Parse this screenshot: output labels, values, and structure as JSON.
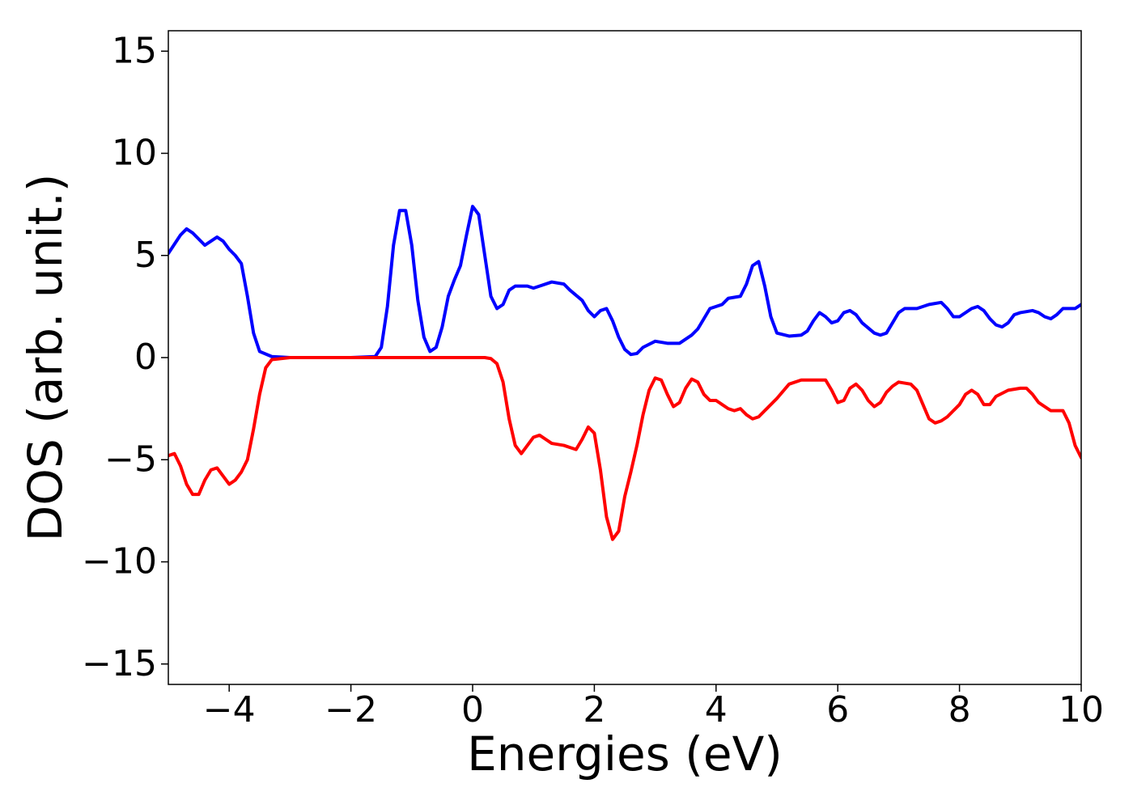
{
  "chart_data": {
    "type": "line",
    "xlabel": "Energies (eV)",
    "ylabel": "DOS (arb. unit.)",
    "xlim": [
      -5,
      10
    ],
    "ylim": [
      -16,
      16
    ],
    "xticks": [
      {
        "value": -4,
        "label": "−4"
      },
      {
        "value": -2,
        "label": "−2"
      },
      0,
      2,
      4,
      6,
      8,
      10
    ],
    "yticks": [
      {
        "value": -15,
        "label": "−15"
      },
      {
        "value": -10,
        "label": "−10"
      },
      {
        "value": -5,
        "label": "−5"
      },
      0,
      5,
      10,
      15
    ],
    "grid": false,
    "series": [
      {
        "color": "#0000ff",
        "x": [
          -5,
          -4.8,
          -4.7,
          -4.6,
          -4.4,
          -4.2,
          -4.1,
          -4.0,
          -3.9,
          -3.8,
          -3.7,
          -3.6,
          -3.5,
          -3.3,
          -3.0,
          -2.0,
          -1.6,
          -1.5,
          -1.4,
          -1.3,
          -1.2,
          -1.1,
          -1.0,
          -0.9,
          -0.8,
          -0.7,
          -0.6,
          -0.5,
          -0.4,
          -0.3,
          -0.2,
          -0.1,
          0.0,
          0.1,
          0.2,
          0.3,
          0.4,
          0.5,
          0.6,
          0.7,
          0.9,
          1.0,
          1.1,
          1.3,
          1.5,
          1.6,
          1.8,
          1.9,
          2.0,
          2.1,
          2.2,
          2.3,
          2.4,
          2.5,
          2.6,
          2.7,
          2.8,
          3.0,
          3.2,
          3.4,
          3.6,
          3.7,
          3.8,
          3.9,
          4.0,
          4.1,
          4.2,
          4.4,
          4.5,
          4.6,
          4.7,
          4.8,
          4.9,
          5.0,
          5.2,
          5.4,
          5.5,
          5.6,
          5.7,
          5.8,
          5.9,
          6.0,
          6.1,
          6.2,
          6.3,
          6.4,
          6.6,
          6.7,
          6.8,
          6.9,
          7.0,
          7.1,
          7.3,
          7.5,
          7.7,
          7.8,
          7.9,
          8.0,
          8.2,
          8.3,
          8.4,
          8.5,
          8.6,
          8.7,
          8.8,
          8.9,
          9.0,
          9.2,
          9.3,
          9.4,
          9.5,
          9.6,
          9.7,
          9.8,
          9.9,
          10.0
        ],
        "values": [
          5.1,
          6.0,
          6.3,
          6.1,
          5.5,
          5.9,
          5.7,
          5.3,
          5.0,
          4.6,
          3.0,
          1.2,
          0.3,
          0.05,
          0,
          0,
          0.05,
          0.5,
          2.5,
          5.5,
          7.2,
          7.2,
          5.5,
          2.8,
          1.0,
          0.3,
          0.5,
          1.5,
          3.0,
          3.8,
          4.5,
          6.0,
          7.4,
          7.0,
          5.0,
          3.0,
          2.4,
          2.6,
          3.3,
          3.5,
          3.5,
          3.4,
          3.5,
          3.7,
          3.6,
          3.3,
          2.8,
          2.3,
          2.0,
          2.3,
          2.4,
          1.8,
          1.0,
          0.4,
          0.15,
          0.2,
          0.5,
          0.8,
          0.7,
          0.7,
          1.1,
          1.4,
          1.9,
          2.4,
          2.5,
          2.6,
          2.9,
          3.0,
          3.6,
          4.5,
          4.7,
          3.5,
          2.0,
          1.2,
          1.05,
          1.1,
          1.3,
          1.8,
          2.2,
          2.0,
          1.7,
          1.8,
          2.2,
          2.3,
          2.1,
          1.7,
          1.2,
          1.1,
          1.2,
          1.7,
          2.2,
          2.4,
          2.4,
          2.6,
          2.7,
          2.4,
          2.0,
          2.0,
          2.4,
          2.5,
          2.3,
          1.9,
          1.6,
          1.5,
          1.7,
          2.1,
          2.2,
          2.3,
          2.2,
          2.0,
          1.9,
          2.1,
          2.4,
          2.4,
          2.4,
          2.6
        ]
      },
      {
        "color": "#ff0000",
        "x": [
          -5,
          -4.9,
          -4.8,
          -4.7,
          -4.6,
          -4.5,
          -4.4,
          -4.3,
          -4.2,
          -4.1,
          -4.0,
          -3.9,
          -3.8,
          -3.7,
          -3.6,
          -3.5,
          -3.4,
          -3.3,
          -3.0,
          0.2,
          0.3,
          0.4,
          0.5,
          0.6,
          0.7,
          0.8,
          0.9,
          1.0,
          1.1,
          1.2,
          1.3,
          1.5,
          1.6,
          1.7,
          1.8,
          1.9,
          2.0,
          2.1,
          2.2,
          2.3,
          2.4,
          2.5,
          2.6,
          2.7,
          2.8,
          2.9,
          3.0,
          3.1,
          3.2,
          3.3,
          3.4,
          3.5,
          3.6,
          3.7,
          3.8,
          3.9,
          4.0,
          4.1,
          4.2,
          4.3,
          4.4,
          4.5,
          4.6,
          4.7,
          4.8,
          5.0,
          5.2,
          5.4,
          5.6,
          5.8,
          5.9,
          6.0,
          6.1,
          6.2,
          6.3,
          6.4,
          6.5,
          6.6,
          6.7,
          6.8,
          6.9,
          7.0,
          7.2,
          7.3,
          7.4,
          7.5,
          7.6,
          7.7,
          7.8,
          7.9,
          8.0,
          8.1,
          8.2,
          8.3,
          8.4,
          8.5,
          8.6,
          8.8,
          9.0,
          9.1,
          9.2,
          9.3,
          9.5,
          9.7,
          9.8,
          9.9,
          10.0
        ],
        "values": [
          -4.8,
          -4.7,
          -5.3,
          -6.2,
          -6.7,
          -6.7,
          -6.0,
          -5.5,
          -5.4,
          -5.8,
          -6.2,
          -6.0,
          -5.6,
          -5.0,
          -3.5,
          -1.8,
          -0.5,
          -0.1,
          0,
          0,
          -0.05,
          -0.3,
          -1.2,
          -3.0,
          -4.3,
          -4.7,
          -4.3,
          -3.9,
          -3.8,
          -4.0,
          -4.2,
          -4.3,
          -4.4,
          -4.5,
          -4.0,
          -3.4,
          -3.7,
          -5.5,
          -7.8,
          -8.9,
          -8.5,
          -6.8,
          -5.6,
          -4.3,
          -2.8,
          -1.6,
          -1.0,
          -1.1,
          -1.8,
          -2.4,
          -2.2,
          -1.5,
          -1.05,
          -1.2,
          -1.8,
          -2.1,
          -2.1,
          -2.3,
          -2.5,
          -2.6,
          -2.5,
          -2.8,
          -3.0,
          -2.9,
          -2.6,
          -2.0,
          -1.3,
          -1.1,
          -1.1,
          -1.1,
          -1.6,
          -2.2,
          -2.1,
          -1.5,
          -1.3,
          -1.6,
          -2.1,
          -2.4,
          -2.2,
          -1.7,
          -1.4,
          -1.2,
          -1.3,
          -1.6,
          -2.3,
          -3.0,
          -3.2,
          -3.1,
          -2.9,
          -2.6,
          -2.3,
          -1.8,
          -1.6,
          -1.8,
          -2.3,
          -2.3,
          -1.9,
          -1.6,
          -1.5,
          -1.5,
          -1.8,
          -2.2,
          -2.6,
          -2.6,
          -3.2,
          -4.3,
          -4.9
        ]
      }
    ]
  }
}
